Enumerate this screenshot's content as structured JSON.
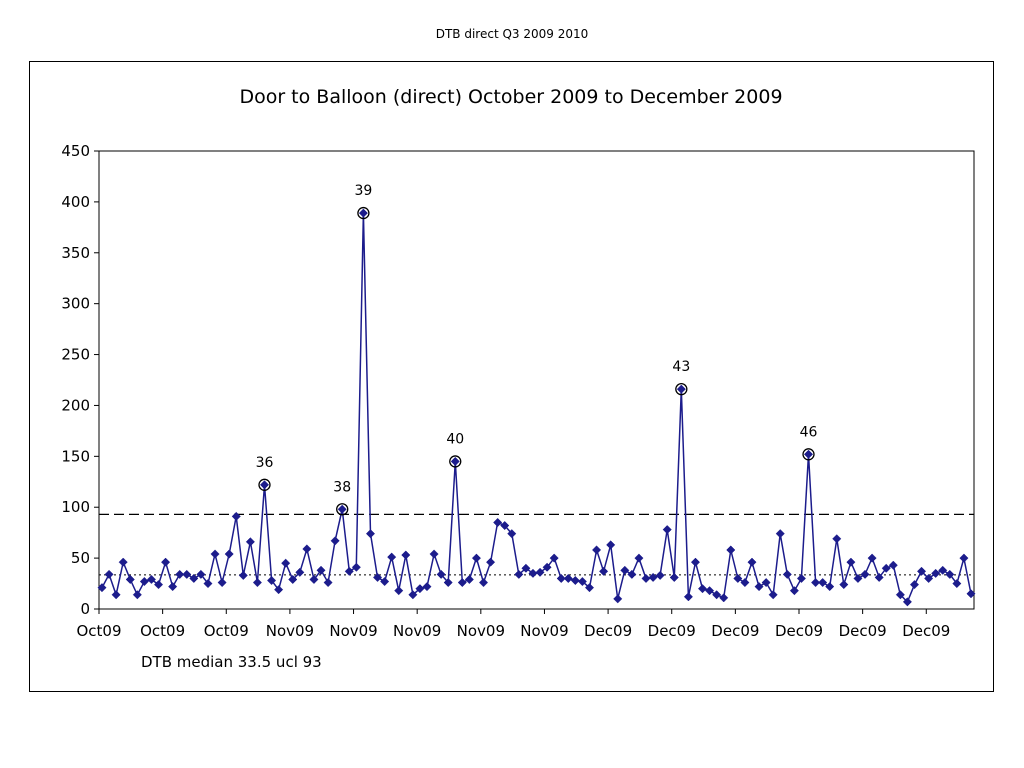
{
  "page_header": "DTB direct Q3 2009 2010",
  "footnote": "DTB median 33.5 ucl 93",
  "chart_data": {
    "type": "line",
    "title": "Door to Balloon (direct) October 2009 to December 2009",
    "xlabel": "",
    "ylabel": "",
    "ylim": [
      0,
      450
    ],
    "yticks": [
      0,
      50,
      100,
      150,
      200,
      250,
      300,
      350,
      400,
      450
    ],
    "xtick_labels": [
      "Oct09",
      "Oct09",
      "Oct09",
      "Nov09",
      "Nov09",
      "Nov09",
      "Nov09",
      "Nov09",
      "Dec09",
      "Dec09",
      "Dec09",
      "Dec09",
      "Dec09",
      "Dec09"
    ],
    "median": 33.5,
    "ucl": 93,
    "line_color": "#1c1c8c",
    "series": [
      {
        "values": [
          21,
          34,
          14,
          46,
          29,
          14,
          27,
          29,
          24,
          46,
          22,
          34,
          34,
          30,
          34,
          25,
          54,
          26,
          54,
          91,
          33,
          66,
          26,
          122,
          28,
          19,
          45,
          29,
          36,
          59,
          29,
          38,
          26,
          67,
          98,
          37,
          41,
          389,
          74,
          31,
          27,
          51,
          18,
          53,
          14,
          20,
          22,
          54,
          34,
          26,
          145,
          26,
          29,
          50,
          26,
          46,
          85,
          82,
          74,
          34,
          40,
          35,
          36,
          41,
          50,
          30,
          30,
          28,
          27,
          21,
          58,
          37,
          63,
          10,
          38,
          34,
          50,
          30,
          31,
          33,
          78,
          31,
          216,
          12,
          46,
          20,
          18,
          14,
          11,
          58,
          30,
          26,
          46,
          22,
          26,
          14,
          74,
          34,
          18,
          30,
          152,
          26,
          26,
          22,
          69,
          24,
          46,
          30,
          34,
          50,
          31,
          40,
          43,
          14,
          7,
          24,
          37,
          30,
          35,
          38,
          34,
          25,
          50,
          15
        ]
      }
    ],
    "annotations": [
      {
        "index": 23,
        "label": "36"
      },
      {
        "index": 34,
        "label": "38"
      },
      {
        "index": 37,
        "label": "39"
      },
      {
        "index": 50,
        "label": "40"
      },
      {
        "index": 82,
        "label": "43"
      },
      {
        "index": 100,
        "label": "46"
      }
    ]
  }
}
